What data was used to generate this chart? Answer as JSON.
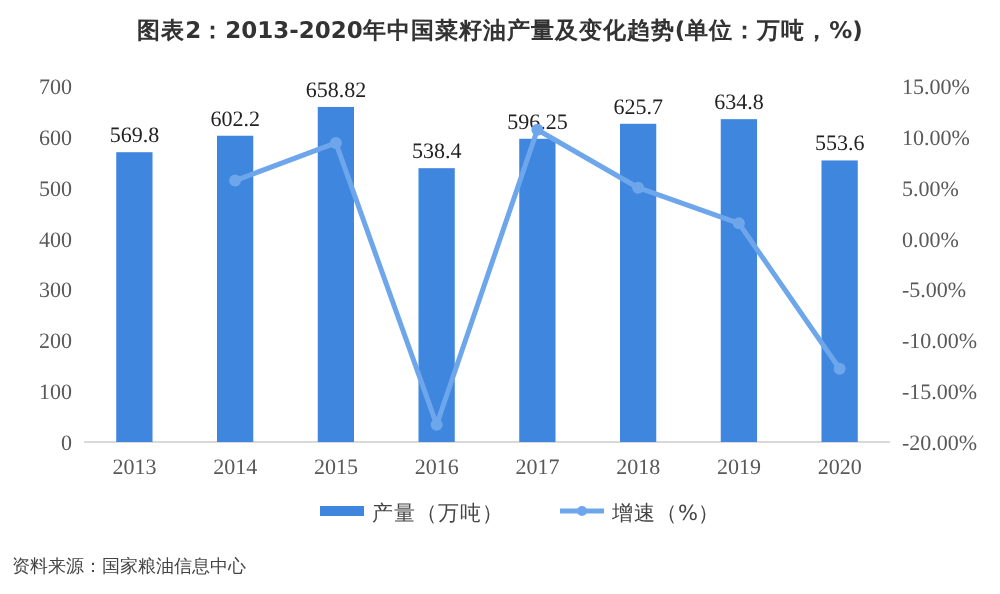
{
  "chart_data": {
    "type": "bar",
    "title": "图表2：2013-2020年中国菜籽油产量及变化趋势(单位：万吨，%)",
    "categories": [
      "2013",
      "2014",
      "2015",
      "2016",
      "2017",
      "2018",
      "2019",
      "2020"
    ],
    "series": [
      {
        "name": "产量（万吨）",
        "color": "#3f86de",
        "values": [
          569.8,
          602.2,
          658.82,
          538.4,
          596.25,
          625.7,
          634.8,
          553.6
        ],
        "value_labels": [
          "569.8",
          "602.2",
          "658.82",
          "538.4",
          "596.25",
          "625.7",
          "634.8",
          "553.6"
        ]
      },
      {
        "name": "增速（%）",
        "type": "line",
        "axis": "y2",
        "color": "#6ea6ec",
        "marker": "circle",
        "values": [
          null,
          5.7,
          9.4,
          -18.3,
          10.7,
          5.0,
          1.5,
          -12.8
        ]
      }
    ],
    "ylim": [
      0,
      700
    ],
    "yticks": [
      0,
      100,
      200,
      300,
      400,
      500,
      600,
      700
    ],
    "y2lim": [
      -20,
      15
    ],
    "y2ticks": [
      {
        "value": -20,
        "label": "-20.00%"
      },
      {
        "value": -15,
        "label": "-15.00%"
      },
      {
        "value": -10,
        "label": "-10.00%"
      },
      {
        "value": -5,
        "label": "-5.00%"
      },
      {
        "value": 0,
        "label": "0.00%"
      },
      {
        "value": 5,
        "label": "5.00%"
      },
      {
        "value": 10,
        "label": "10.00%"
      },
      {
        "value": 15,
        "label": "15.00%"
      }
    ],
    "legend": "bottom",
    "annotations": [
      "资料来源：国家粮油信息中心"
    ]
  }
}
